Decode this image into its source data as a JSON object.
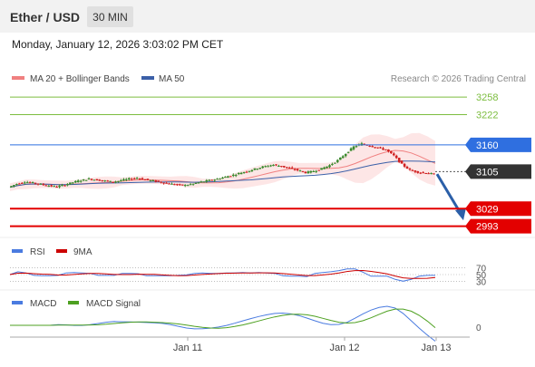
{
  "header": {
    "title": "Ether / USD",
    "timeframe": "30 MIN",
    "timestamp": "Monday, January 12, 2026 3:03:02 PM CET"
  },
  "legend": {
    "bollinger": "MA 20 + Bollinger Bands",
    "ma50": "MA 50",
    "credit": "Research © 2026 Trading Central",
    "rsi": "RSI",
    "rsi_ma": "9MA",
    "macd": "MACD",
    "macd_signal": "MACD Signal"
  },
  "colors": {
    "resistance": "#7cbd3f",
    "pivot": "#2f6fe0",
    "support": "#e30000",
    "current": "#333333",
    "candle_up": "#3a8a2e",
    "candle_down": "#d02020",
    "band_fill": "#fbd5d5",
    "ma20": "#f08080",
    "ma50": "#3b60a8",
    "arrow": "#2b5fa8",
    "rsi": "#4a7be0",
    "rsi_ma": "#cc0000",
    "macd": "#4a7be0",
    "macd_signal": "#4da020"
  },
  "chart_data": {
    "type": "candlestick",
    "x_ticks": [
      "Jan 11",
      "Jan 12",
      "Jan 13"
    ],
    "ylim": [
      2970,
      3275
    ],
    "levels": [
      {
        "label": "3258",
        "value": 3258,
        "kind": "resistance"
      },
      {
        "label": "3222",
        "value": 3222,
        "kind": "resistance"
      },
      {
        "label": "3160",
        "value": 3160,
        "kind": "pivot"
      },
      {
        "label": "3105",
        "value": 3105,
        "kind": "current"
      },
      {
        "label": "3029",
        "value": 3029,
        "kind": "support"
      },
      {
        "label": "2993",
        "value": 2993,
        "kind": "support"
      }
    ],
    "price_path": [
      3073,
      3080,
      3084,
      3082,
      3079,
      3076,
      3074,
      3078,
      3083,
      3087,
      3090,
      3088,
      3086,
      3084,
      3087,
      3090,
      3092,
      3089,
      3086,
      3083,
      3080,
      3078,
      3077,
      3080,
      3084,
      3087,
      3090,
      3094,
      3098,
      3103,
      3107,
      3112,
      3116,
      3119,
      3116,
      3112,
      3108,
      3103,
      3106,
      3111,
      3118,
      3128,
      3142,
      3156,
      3162,
      3158,
      3154,
      3150,
      3138,
      3120,
      3108,
      3104,
      3102,
      3100
    ],
    "arrow_to": 3005,
    "rsi": {
      "ticks": [
        70,
        50,
        30
      ],
      "ylim": [
        20,
        80
      ]
    },
    "macd": {
      "ticks": [
        0
      ]
    }
  }
}
